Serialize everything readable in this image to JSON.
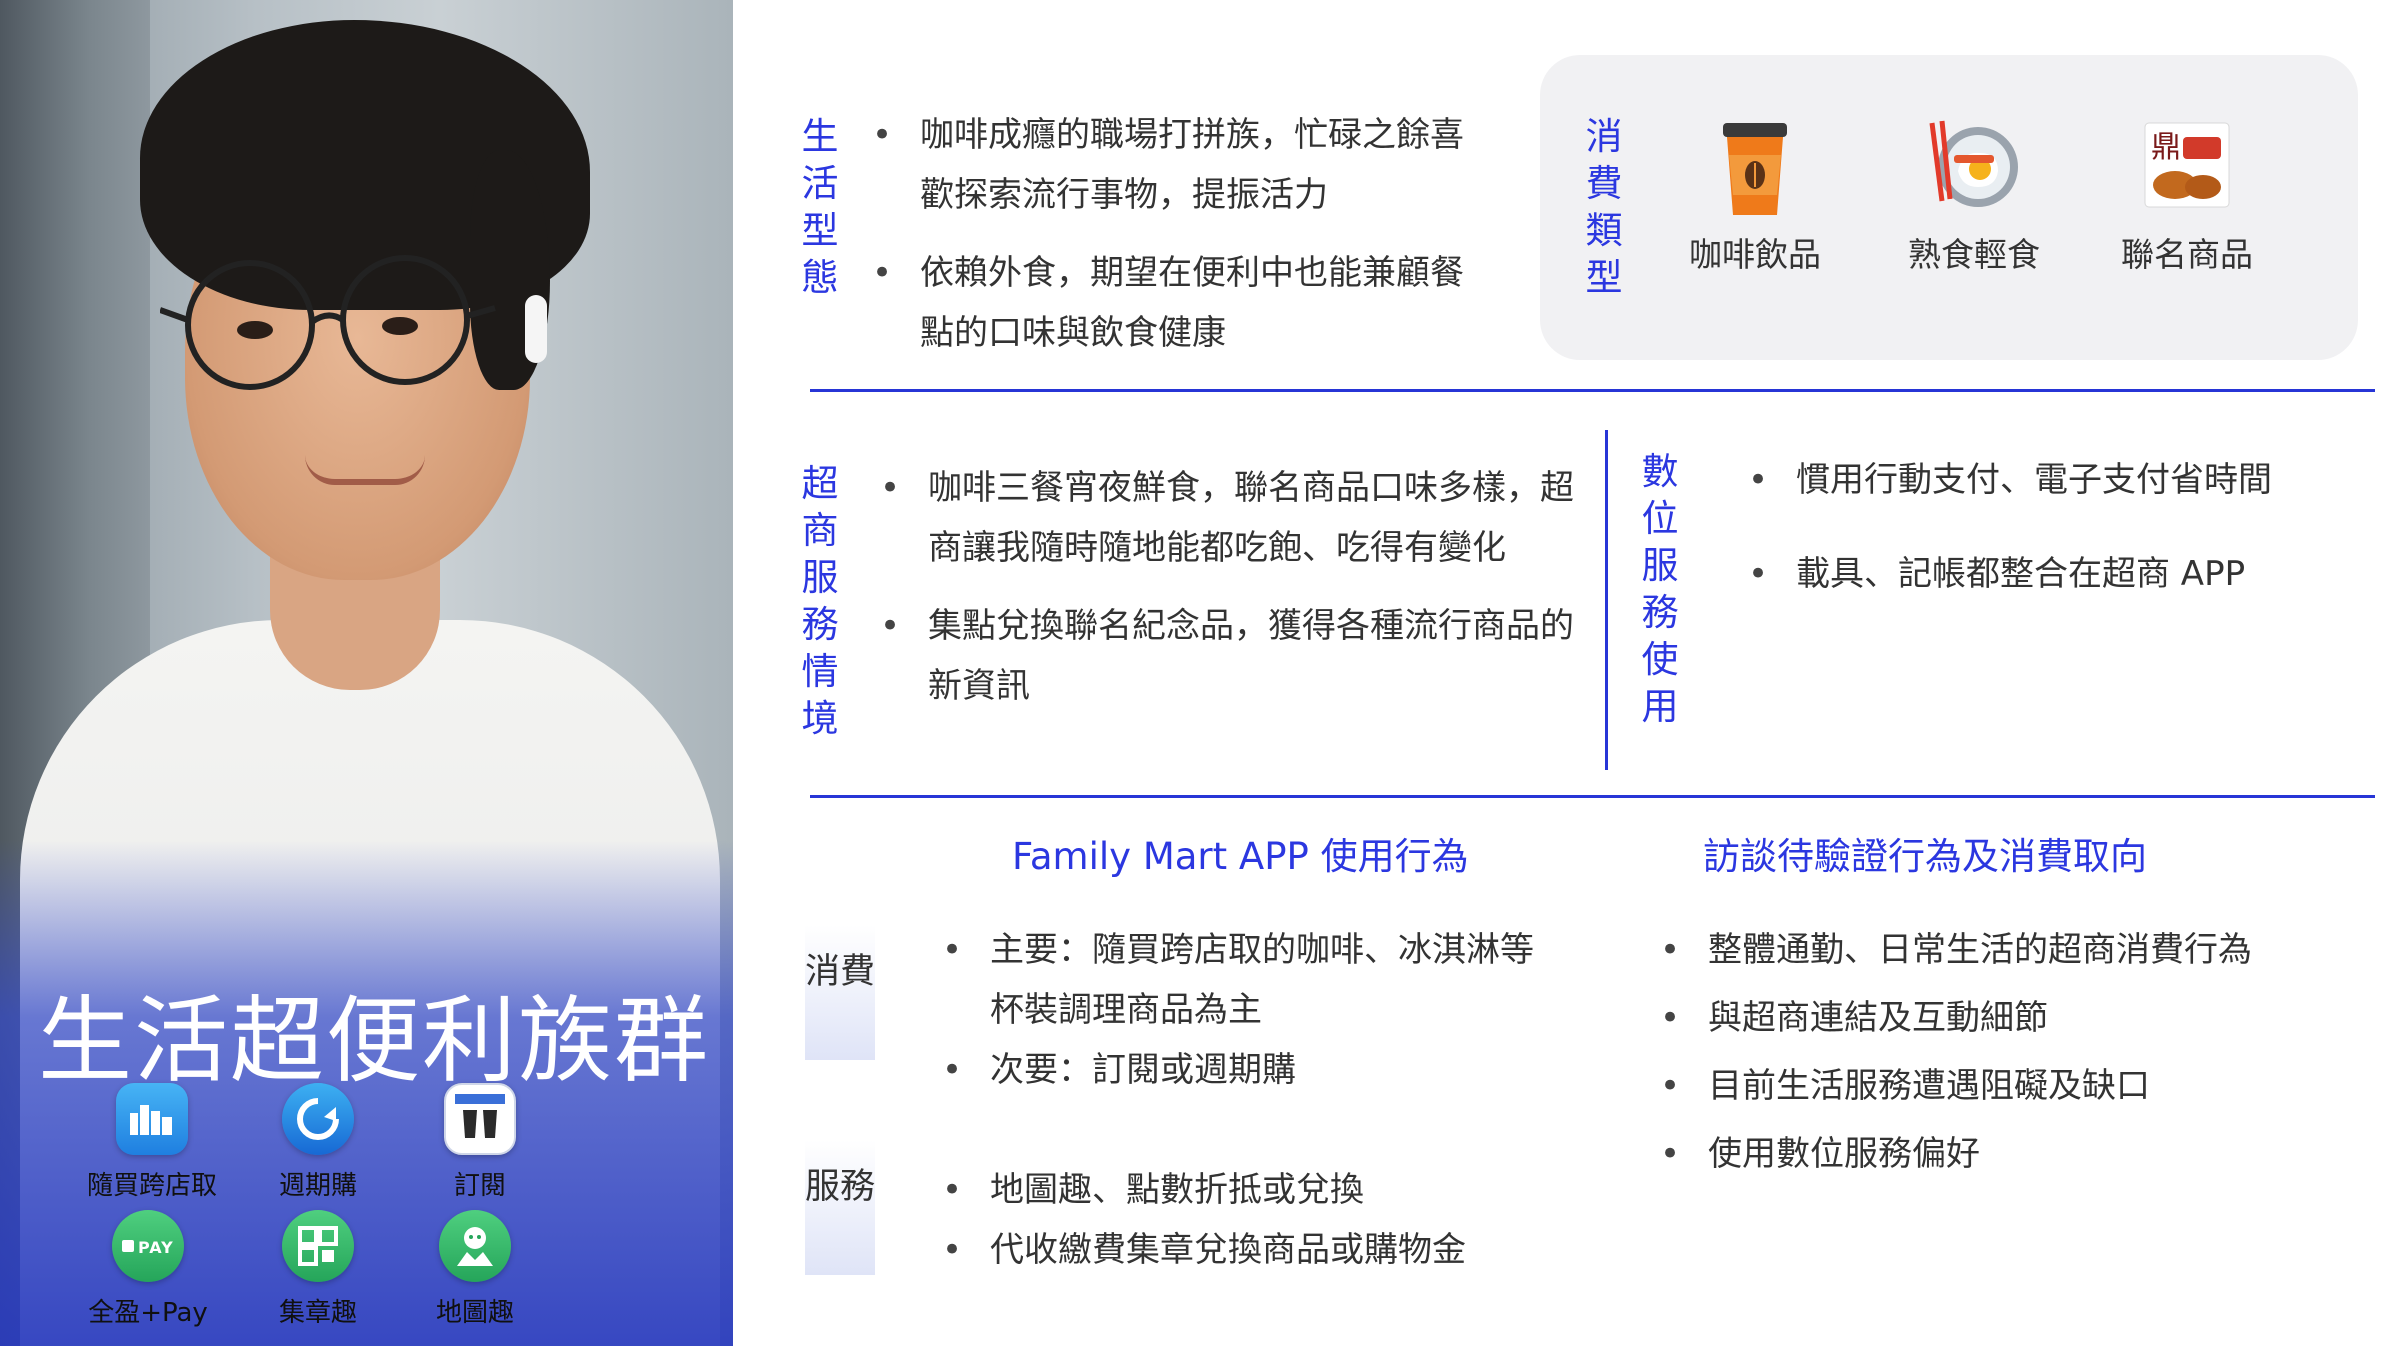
{
  "persona": {
    "title": "生活超便利族群",
    "apps": [
      {
        "label": "隨買跨店取",
        "icon": "city-bag-icon",
        "color": "#1f8ee8"
      },
      {
        "label": "週期購",
        "icon": "cycle-arrow-icon",
        "color": "#1ba0e8"
      },
      {
        "label": "訂閱",
        "icon": "coffee-cups-icon",
        "color": "#ffffff"
      },
      {
        "label": "全盈+Pay",
        "icon": "pay-icon",
        "color": "#33b86a"
      },
      {
        "label": "集章趣",
        "icon": "stamp-grid-icon",
        "color": "#33b86a"
      },
      {
        "label": "地圖趣",
        "icon": "map-mascot-icon",
        "color": "#33b86a"
      }
    ]
  },
  "lifestyle": {
    "label": "生活型態",
    "bullets": [
      "咖啡成癮的職場打拼族，忙碌之餘喜歡探索流行事物，提振活力",
      "依賴外食，期望在便利中也能兼顧餐點的口味與飲食健康"
    ]
  },
  "consumption": {
    "label": "消費類型",
    "items": [
      {
        "label": "咖啡飲品",
        "icon": "coffee-cup-icon"
      },
      {
        "label": "熟食輕食",
        "icon": "fried-egg-plate-icon"
      },
      {
        "label": "聯名商品",
        "icon": "branded-snack-icon"
      }
    ]
  },
  "store_service": {
    "label": "超商服務情境",
    "bullets": [
      "咖啡三餐宵夜鮮食，聯名商品口味多樣，超商讓我隨時隨地能都吃飽、吃得有變化",
      "集點兌換聯名紀念品，獲得各種流行商品的新資訊"
    ]
  },
  "digital": {
    "label": "數位服務使用",
    "bullets": [
      "慣用行動支付、電子支付省時間",
      "載具、記帳都整合在超商 APP"
    ]
  },
  "app_behavior": {
    "heading": "Family Mart APP 使用行為",
    "consume_tag": "消費",
    "consume_bullets": [
      "主要：隨買跨店取的咖啡、冰淇淋等杯裝調理商品為主",
      "次要：訂閱或週期購"
    ],
    "service_tag": "服務",
    "service_bullets": [
      "地圖趣、點數折抵或兌換",
      "代收繳費集章兌換商品或購物金"
    ]
  },
  "interview": {
    "heading": "訪談待驗證行為及消費取向",
    "bullets": [
      "整體通勤、日常生活的超商消費行為",
      "與超商連結及互動細節",
      "目前生活服務遭遇阻礙及缺口",
      "使用數位服務偏好"
    ]
  },
  "colors": {
    "accent": "#2b37e0",
    "rule": "#2735d6",
    "card": "#f1f1f3"
  }
}
